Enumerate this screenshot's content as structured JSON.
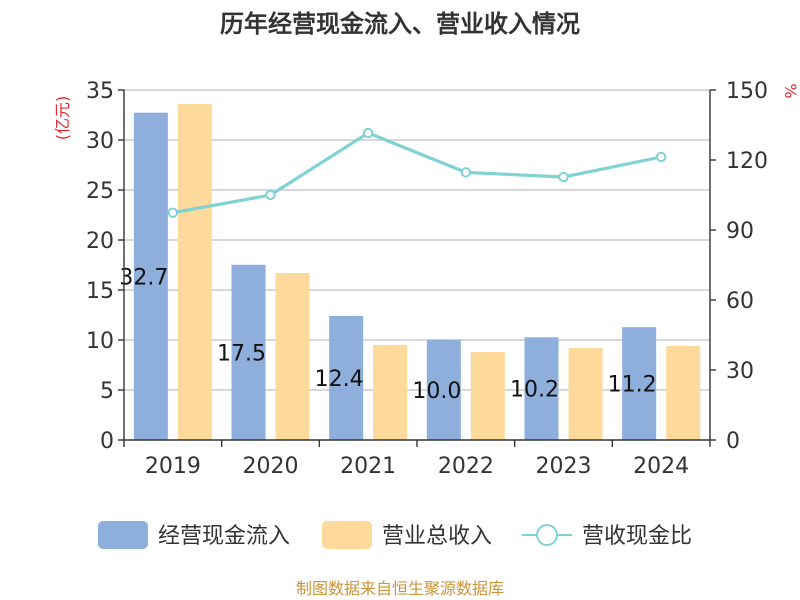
{
  "chart_data": {
    "type": "bar",
    "title": "历年经营现金流入、营业收入情况",
    "categories": [
      "2019",
      "2020",
      "2021",
      "2022",
      "2023",
      "2024"
    ],
    "y_left": {
      "label": "(亿元)",
      "min": 0,
      "max": 35,
      "ticks": [
        0,
        5,
        10,
        15,
        20,
        25,
        30,
        35
      ]
    },
    "y_right": {
      "label": "%",
      "min": 0,
      "max": 150,
      "ticks": [
        0,
        30,
        60,
        90,
        120,
        150
      ]
    },
    "grid": true,
    "series": [
      {
        "name": "经营现金流入",
        "type": "bar",
        "axis": "left",
        "color": "#8eaedb",
        "values": [
          32.73,
          17.52,
          12.41,
          10.03,
          10.27,
          11.28
        ],
        "labels": [
          "32.73",
          "17.52",
          "12.41",
          "10.03",
          "10.27",
          "11.28"
        ]
      },
      {
        "name": "营业总收入",
        "type": "bar",
        "axis": "left",
        "color": "#fdd99b",
        "values": [
          33.6,
          16.7,
          9.5,
          8.8,
          9.2,
          9.4
        ]
      },
      {
        "name": "营收现金比",
        "type": "line",
        "axis": "right",
        "color": "#80d2d4",
        "values": [
          97.4,
          105,
          131.6,
          114.7,
          112.7,
          121.3
        ]
      }
    ],
    "legend_position": "bottom",
    "source": "制图数据来自恒生聚源数据库",
    "colors": {
      "title": "#333333",
      "axis": "#333333",
      "axis_label": "#e8262d",
      "grid": "#cccccc",
      "source": "#c9963b"
    }
  }
}
